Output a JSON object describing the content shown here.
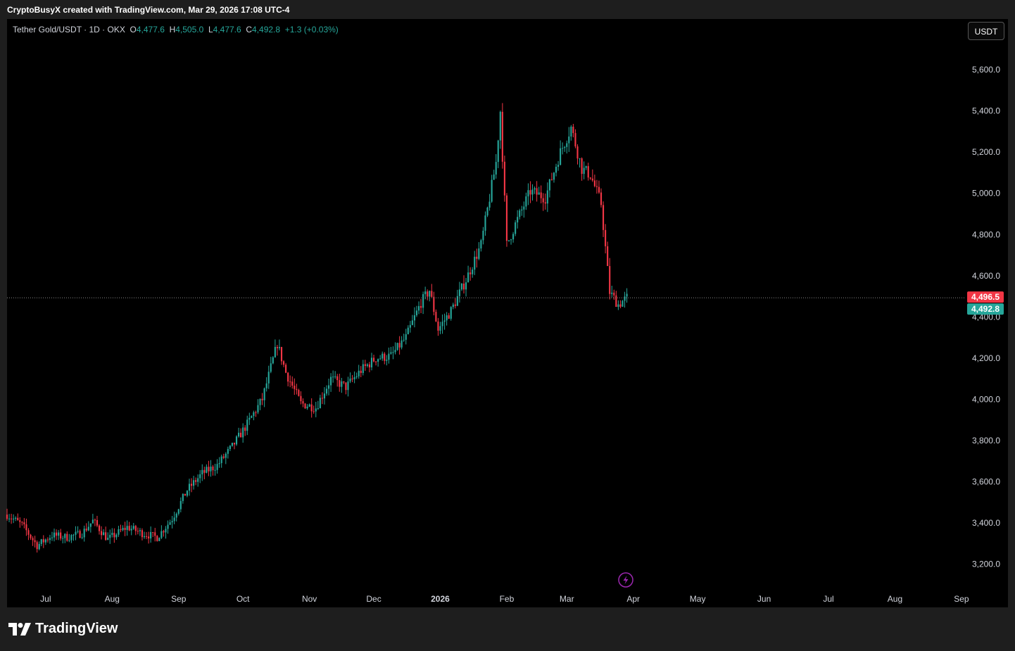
{
  "header": {
    "attribution": "CryptoBusyX created with TradingView.com, Mar 29, 2026 17:08 UTC-4"
  },
  "legend": {
    "symbol": "Tether Gold/USDT · 1D · OKX",
    "o_label": "O",
    "o_value": "4,477.6",
    "h_label": "H",
    "h_value": "4,505.0",
    "l_label": "L",
    "l_value": "4,477.6",
    "c_label": "C",
    "c_value": "4,492.8",
    "change": "+1.3 (+0.03%)"
  },
  "currency_button": "USDT",
  "brand": {
    "name": "TradingView"
  },
  "colors": {
    "up": "#26a69a",
    "down": "#f23645",
    "background": "#000000",
    "frame": "#1e1e1e"
  },
  "chart_data": {
    "type": "candlestick",
    "y_axis": {
      "ticks": [
        "5,600.0",
        "5,400.0",
        "5,200.0",
        "5,000.0",
        "4,800.0",
        "4,600.0",
        "4,400.0",
        "4,200.0",
        "4,000.0",
        "3,800.0",
        "3,600.0",
        "3,400.0",
        "3,200.0"
      ],
      "tick_values": [
        5600,
        5400,
        5200,
        5000,
        4800,
        4600,
        4400,
        4200,
        4000,
        3800,
        3600,
        3400,
        3200
      ],
      "range": [
        3000,
        5850
      ]
    },
    "x_axis": {
      "labels": [
        "Jul",
        "Aug",
        "Sep",
        "Oct",
        "Nov",
        "Dec",
        "2026",
        "Feb",
        "Mar",
        "Apr",
        "May",
        "Jun",
        "Jul",
        "Aug",
        "Sep"
      ],
      "label_dates": [
        "2025-07-01",
        "2025-08-01",
        "2025-09-01",
        "2025-10-01",
        "2025-11-01",
        "2025-12-01",
        "2026-01-01",
        "2026-02-01",
        "2026-03-01",
        "2026-04-01",
        "2026-05-01",
        "2026-06-01",
        "2026-07-01",
        "2026-08-01",
        "2026-09-01"
      ],
      "bold_labels": [
        "2026"
      ],
      "range": [
        "2025-06-13",
        "2026-09-03"
      ]
    },
    "price_labels": [
      {
        "text": "4,496.5",
        "value": 4496.5,
        "color": "#f23645"
      },
      {
        "text": "4,492.8",
        "value": 4492.8,
        "color": "#26a69a"
      }
    ],
    "last_price": 4492.8,
    "series": [
      {
        "date": "2025-06-13",
        "close": 3440
      },
      {
        "date": "2025-06-20",
        "close": 3390
      },
      {
        "date": "2025-06-27",
        "close": 3290
      },
      {
        "date": "2025-07-04",
        "close": 3340
      },
      {
        "date": "2025-07-11",
        "close": 3330
      },
      {
        "date": "2025-07-18",
        "close": 3350
      },
      {
        "date": "2025-07-23",
        "close": 3410
      },
      {
        "date": "2025-07-30",
        "close": 3320
      },
      {
        "date": "2025-08-08",
        "close": 3380
      },
      {
        "date": "2025-08-15",
        "close": 3350
      },
      {
        "date": "2025-08-22",
        "close": 3330
      },
      {
        "date": "2025-08-29",
        "close": 3420
      },
      {
        "date": "2025-09-05",
        "close": 3560
      },
      {
        "date": "2025-09-12",
        "close": 3640
      },
      {
        "date": "2025-09-19",
        "close": 3680
      },
      {
        "date": "2025-09-26",
        "close": 3770
      },
      {
        "date": "2025-10-03",
        "close": 3880
      },
      {
        "date": "2025-10-10",
        "close": 4000
      },
      {
        "date": "2025-10-17",
        "close": 4270
      },
      {
        "date": "2025-10-21",
        "close": 4130
      },
      {
        "date": "2025-10-28",
        "close": 3980
      },
      {
        "date": "2025-11-04",
        "close": 3960
      },
      {
        "date": "2025-11-11",
        "close": 4100
      },
      {
        "date": "2025-11-18",
        "close": 4060
      },
      {
        "date": "2025-11-25",
        "close": 4140
      },
      {
        "date": "2025-12-02",
        "close": 4200
      },
      {
        "date": "2025-12-09",
        "close": 4210
      },
      {
        "date": "2025-12-16",
        "close": 4300
      },
      {
        "date": "2025-12-23",
        "close": 4470
      },
      {
        "date": "2025-12-27",
        "close": 4530
      },
      {
        "date": "2025-12-31",
        "close": 4340
      },
      {
        "date": "2026-01-06",
        "close": 4430
      },
      {
        "date": "2026-01-13",
        "close": 4580
      },
      {
        "date": "2026-01-20",
        "close": 4750
      },
      {
        "date": "2026-01-27",
        "close": 5150
      },
      {
        "date": "2026-01-29",
        "close": 5400
      },
      {
        "date": "2026-02-01",
        "close": 4750
      },
      {
        "date": "2026-02-05",
        "close": 4850
      },
      {
        "date": "2026-02-12",
        "close": 5010
      },
      {
        "date": "2026-02-19",
        "close": 4980
      },
      {
        "date": "2026-02-26",
        "close": 5200
      },
      {
        "date": "2026-03-03",
        "close": 5320
      },
      {
        "date": "2026-03-08",
        "close": 5120
      },
      {
        "date": "2026-03-12",
        "close": 5090
      },
      {
        "date": "2026-03-17",
        "close": 4950
      },
      {
        "date": "2026-03-21",
        "close": 4520
      },
      {
        "date": "2026-03-25",
        "close": 4460
      },
      {
        "date": "2026-03-29",
        "close": 4493
      }
    ]
  }
}
